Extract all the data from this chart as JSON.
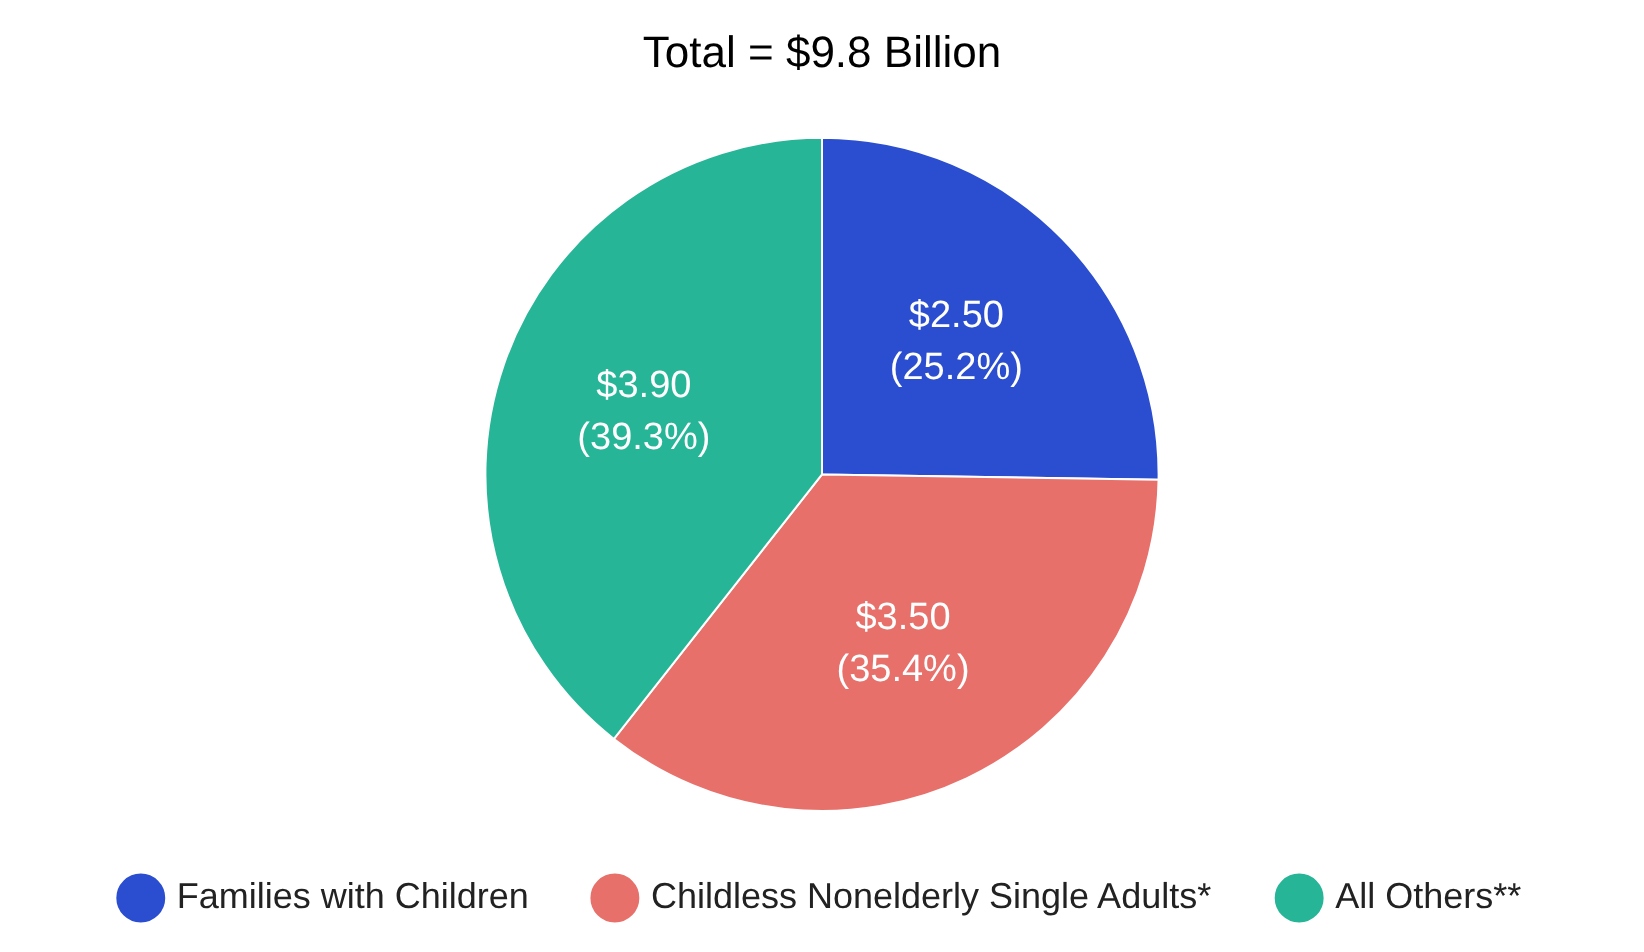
{
  "chart_data": {
    "type": "pie",
    "title": "Total = $9.8 Billion",
    "categories": [
      "Families with Children",
      "Childless Nonelderly Single Adults*",
      "All Others**"
    ],
    "values": [
      2.5,
      3.5,
      3.9
    ],
    "colors": [
      "#2a4ecf",
      "#e8706a",
      "#27b597"
    ],
    "value_labels": [
      "$2.50\n(25.2%)",
      "$3.50\n(35.4%)",
      "$3.90\n(39.3%)"
    ],
    "legend": "bottom"
  }
}
